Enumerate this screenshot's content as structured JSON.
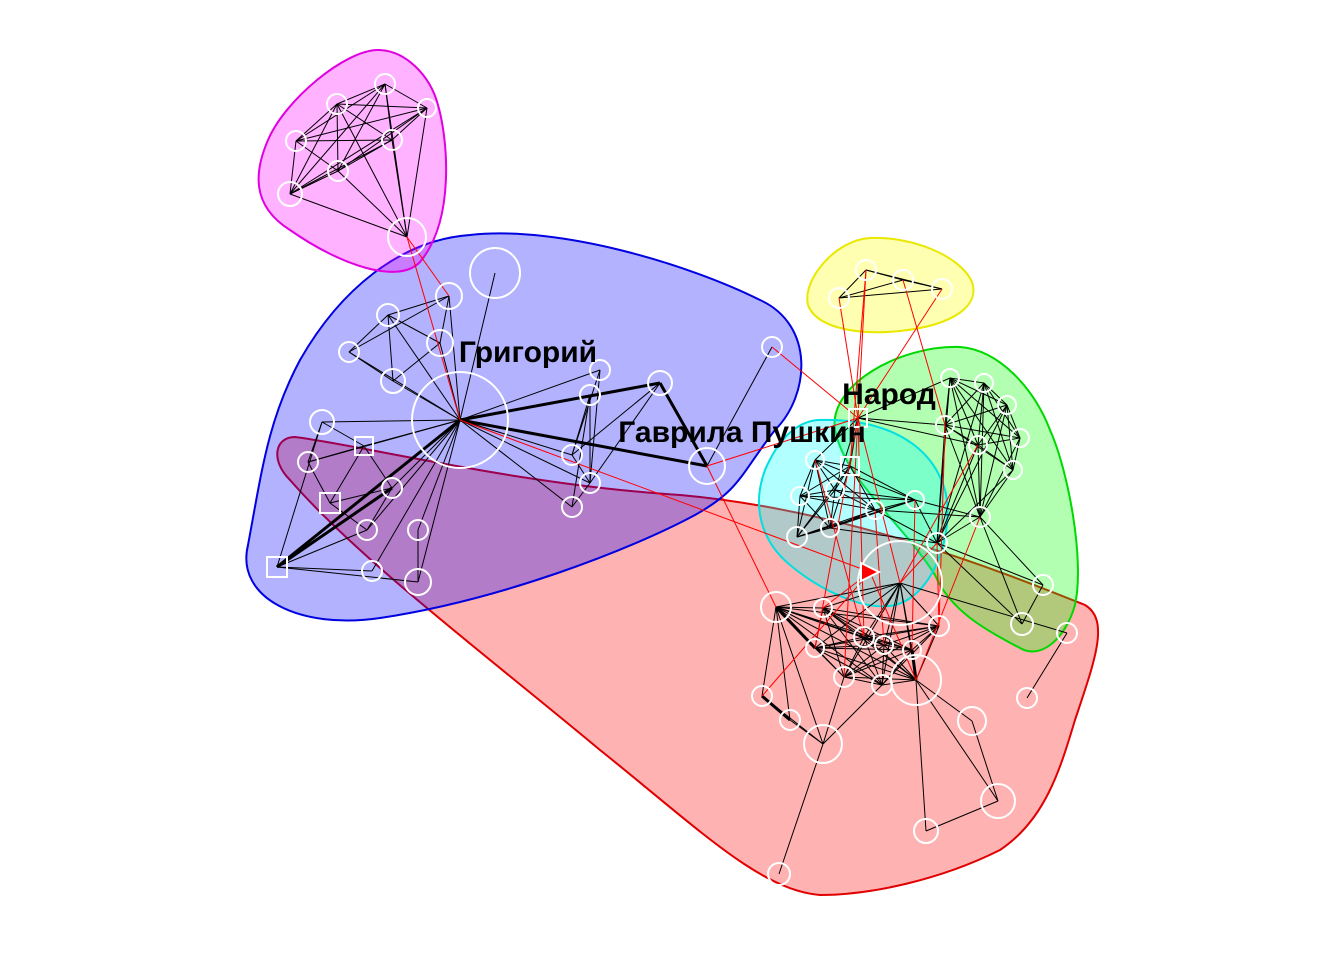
{
  "labels": {
    "grigoriy": "Григорий",
    "narod": "Народ",
    "gavrila": "Гаврила Пушкин"
  },
  "communities": [
    {
      "id": "magenta",
      "fill": "#ff00ff",
      "stroke": "#e000e0"
    },
    {
      "id": "blue",
      "fill": "#0000ff",
      "stroke": "#0000e0"
    },
    {
      "id": "red",
      "fill": "#ff0000",
      "stroke": "#e00000"
    },
    {
      "id": "yellow",
      "fill": "#ffff00",
      "stroke": "#e8e800"
    },
    {
      "id": "green",
      "fill": "#00ff00",
      "stroke": "#00d800"
    },
    {
      "id": "cyan",
      "fill": "#00ffff",
      "stroke": "#00e0e0"
    }
  ],
  "colors": {
    "node_stroke": "#ffffff",
    "intra_edge": "#000000",
    "inter_edge": "#ff0000"
  }
}
